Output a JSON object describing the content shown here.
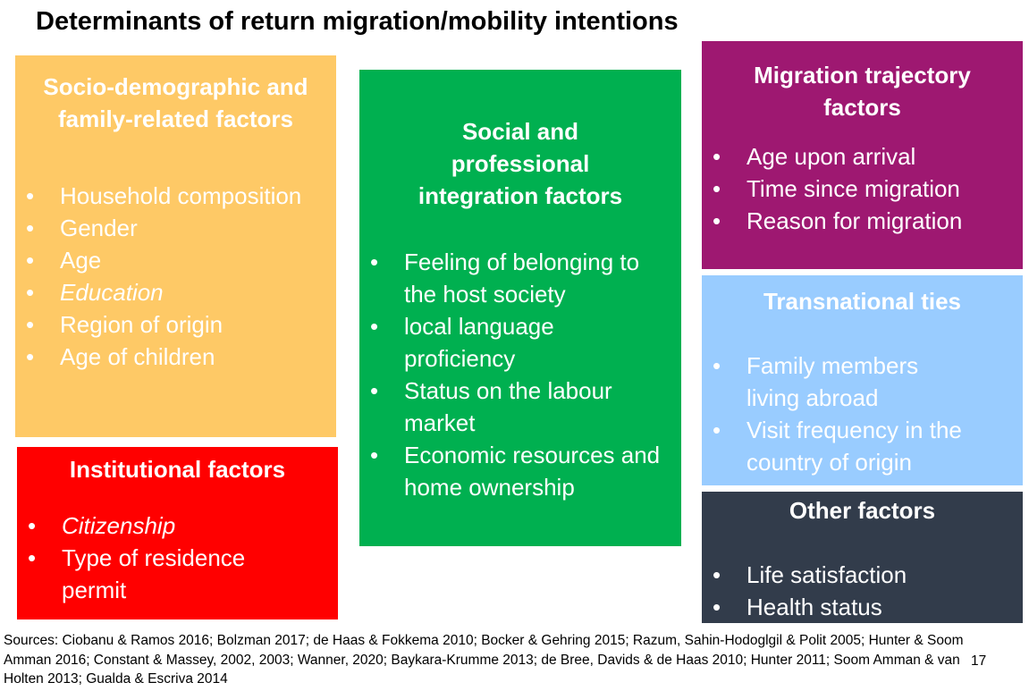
{
  "title": "Determinants of return migration/mobility intentions",
  "colors": {
    "socio": "#fec966",
    "institutional": "#ff0000",
    "social": "#00b050",
    "trajectory": "#9e1871",
    "transnational": "#99ccff",
    "other": "#323c4b"
  },
  "boxes": {
    "socio": {
      "heading": "Socio-demographic and family-related factors",
      "items": [
        "Household composition",
        "Gender",
        "Age",
        "Education",
        "Region of origin",
        "Age of children"
      ]
    },
    "institutional": {
      "heading": "Institutional factors",
      "items": [
        "Citizenship",
        "Type of residence permit"
      ]
    },
    "social": {
      "heading": "Social and professional integration factors",
      "items": [
        "Feeling of belonging to the host society",
        "local language proficiency",
        "Status on the labour market",
        "Economic resources and home ownership"
      ]
    },
    "trajectory": {
      "heading": "Migration trajectory factors",
      "items": [
        "Age upon arrival",
        "Time since migration",
        "Reason for migration"
      ]
    },
    "transnational": {
      "heading": "Transnational ties",
      "items": [
        "Family members living abroad",
        "Visit frequency in the country of origin"
      ]
    },
    "other": {
      "heading": "Other factors",
      "items": [
        "Life satisfaction",
        "Health status"
      ]
    }
  },
  "sources": "Sources: Ciobanu & Ramos 2016; Bolzman 2017; de Haas & Fokkema 2010; Bocker & Gehring 2015; Razum, Sahin-Hodoglgil & Polit 2005; Hunter & Soom Amman 2016; Constant & Massey, 2002, 2003; Wanner, 2020; Baykara-Krumme 2013; de Bree, Davids & de Haas 2010; Hunter 2011; Soom Amman & van Holten 2013; Gualda & Escriva 2014",
  "page_number": "17"
}
